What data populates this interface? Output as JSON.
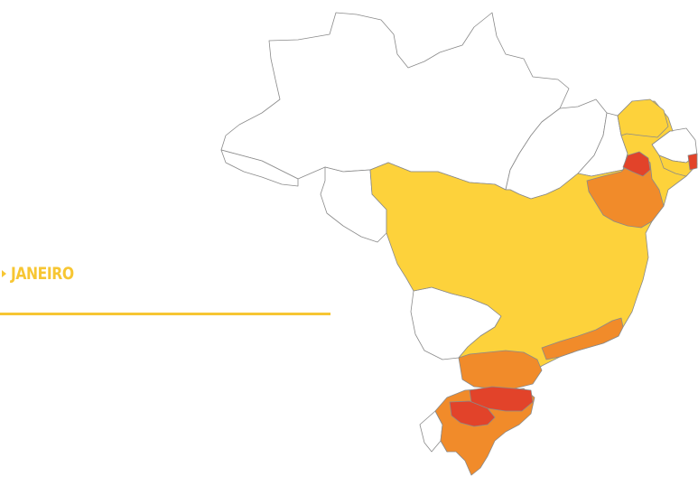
{
  "selector": {
    "label": "JANEIRO",
    "arrow_icon": "triangle-right-icon"
  },
  "colors": {
    "accent": "#f7c633",
    "level_1": "#fdd23b",
    "level_2": "#f18b2a",
    "level_3": "#e2432a",
    "empty": "#ffffff",
    "border": "#8a8a8a"
  }
}
